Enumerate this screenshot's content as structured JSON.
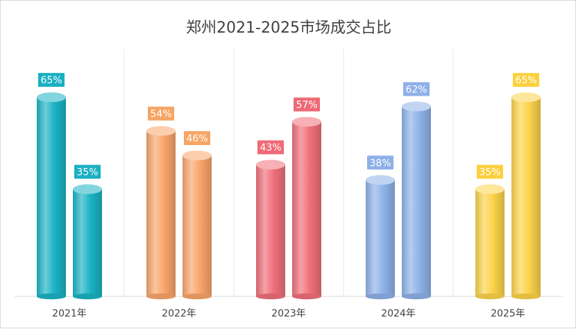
{
  "chart_data": {
    "type": "bar",
    "title": "郑州2021-2025市场成交占比",
    "xlabel": "",
    "ylabel": "",
    "categories": [
      "2021年",
      "2022年",
      "2023年",
      "2024年",
      "2025年"
    ],
    "series": [
      {
        "values": [
          65,
          54,
          43,
          38,
          35
        ]
      },
      {
        "values": [
          35,
          46,
          57,
          62,
          65
        ]
      }
    ],
    "value_suffix": "%",
    "ylim": [
      0,
      75
    ],
    "grid": false,
    "legend": "none",
    "category_colors": [
      "#1bb3c4",
      "#f9a56a",
      "#f0707a",
      "#8fb2e8",
      "#fcd34a"
    ],
    "label_colors": [
      "#19b0c2",
      "#f7a565",
      "#ee6a76",
      "#8eb0e8",
      "#fbd03e"
    ]
  }
}
